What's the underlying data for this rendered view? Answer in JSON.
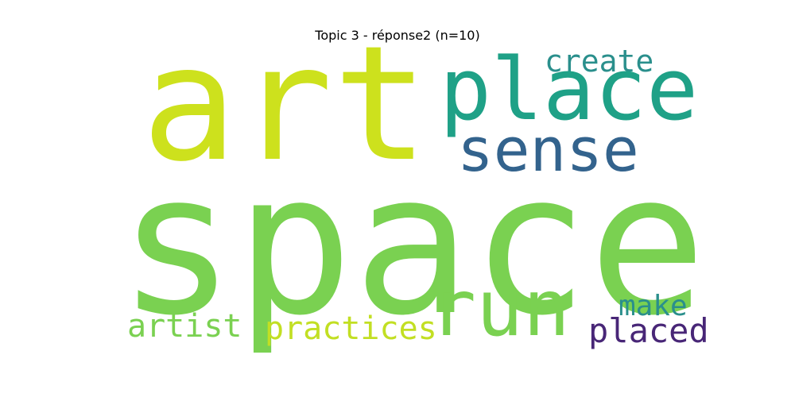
{
  "title": "Topic 3 - réponse2 (n=10)",
  "words": {
    "art": {
      "text": "art",
      "color": "#cde11d"
    },
    "place": {
      "text": "place",
      "color": "#1fa187"
    },
    "create": {
      "text": "create",
      "color": "#2a8f8c"
    },
    "sense": {
      "text": "sense",
      "color": "#33638d"
    },
    "space": {
      "text": "space",
      "color": "#7ad151"
    },
    "run": {
      "text": "run",
      "color": "#7ad151"
    },
    "make": {
      "text": "make",
      "color": "#2a8f8c"
    },
    "artist": {
      "text": "artist",
      "color": "#7ad151"
    },
    "practices": {
      "text": "practices",
      "color": "#c2df23"
    },
    "placed": {
      "text": "placed",
      "color": "#482677"
    }
  }
}
